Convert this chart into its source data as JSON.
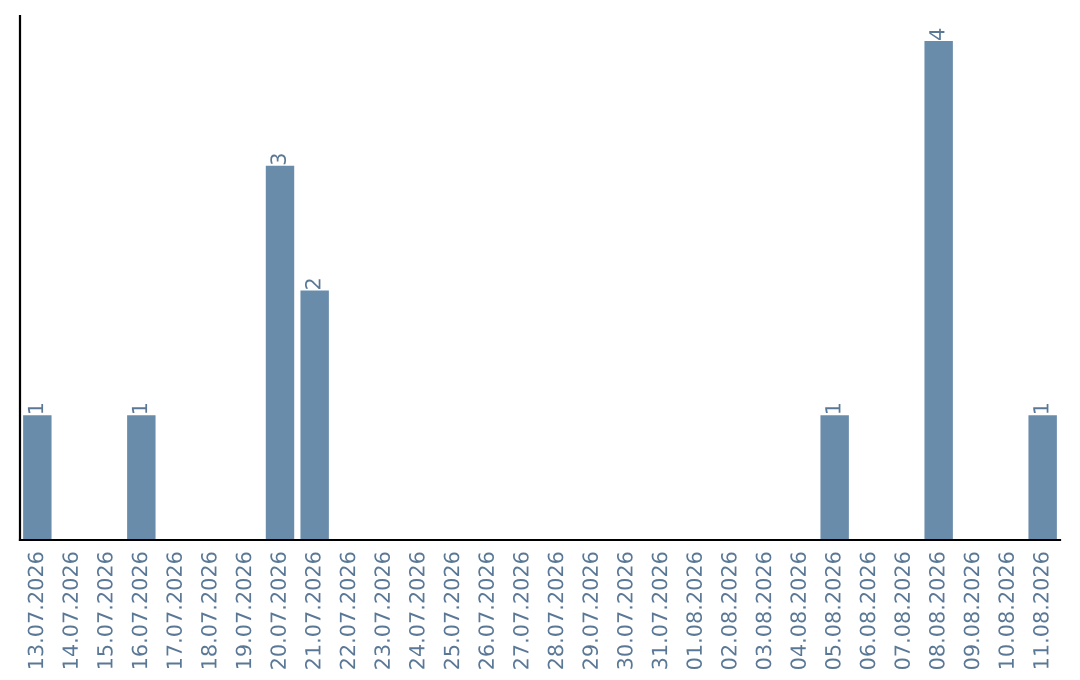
{
  "chart_data": {
    "type": "bar",
    "categories": [
      "13.07.2026",
      "14.07.2026",
      "15.07.2026",
      "16.07.2026",
      "17.07.2026",
      "18.07.2026",
      "19.07.2026",
      "20.07.2026",
      "21.07.2026",
      "22.07.2026",
      "23.07.2026",
      "24.07.2026",
      "25.07.2026",
      "26.07.2026",
      "27.07.2026",
      "28.07.2026",
      "29.07.2026",
      "30.07.2026",
      "31.07.2026",
      "01.08.2026",
      "02.08.2026",
      "03.08.2026",
      "04.08.2026",
      "05.08.2026",
      "06.08.2026",
      "07.08.2026",
      "08.08.2026",
      "09.08.2026",
      "10.08.2026",
      "11.08.2026"
    ],
    "values": [
      1,
      0,
      0,
      1,
      0,
      0,
      0,
      3,
      2,
      0,
      0,
      0,
      0,
      0,
      0,
      0,
      0,
      0,
      0,
      0,
      0,
      0,
      0,
      1,
      0,
      0,
      4,
      0,
      0,
      1
    ],
    "value_labels": [
      "1",
      null,
      null,
      "1",
      null,
      null,
      null,
      "3",
      "2",
      null,
      null,
      null,
      null,
      null,
      null,
      null,
      null,
      null,
      null,
      null,
      null,
      null,
      null,
      "1",
      null,
      null,
      "4",
      null,
      null,
      "1"
    ],
    "color": "#6a8cab",
    "grid": false,
    "legend": false
  }
}
